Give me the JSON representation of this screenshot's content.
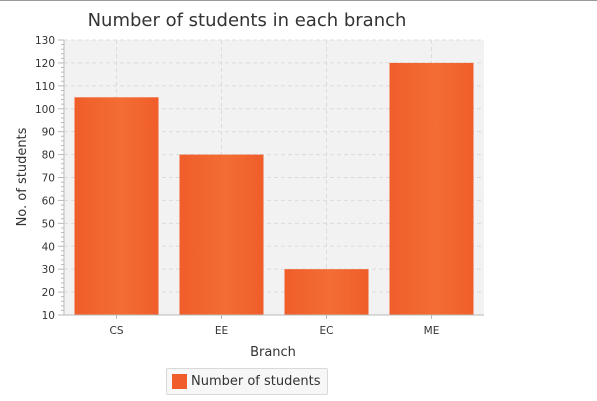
{
  "chart_data": {
    "type": "bar",
    "title": "Number of students in each branch",
    "xlabel": "Branch",
    "ylabel": "No. of students",
    "categories": [
      "CS",
      "EE",
      "EC",
      "ME"
    ],
    "series": [
      {
        "name": "Number of students",
        "values": [
          105,
          80,
          30,
          120
        ]
      }
    ],
    "ylim": [
      10,
      130
    ],
    "yticks": [
      10,
      20,
      30,
      40,
      50,
      60,
      70,
      80,
      90,
      100,
      110,
      120,
      130
    ],
    "grid": true,
    "legend_position": "bottom",
    "colors": {
      "bar": "#f05d2a",
      "bar_highlight": "#f36d34",
      "plot_background": "#f2f2f2",
      "grid": "#dcdcdc",
      "axis": "#b9b9b9",
      "text": "#333333"
    }
  }
}
